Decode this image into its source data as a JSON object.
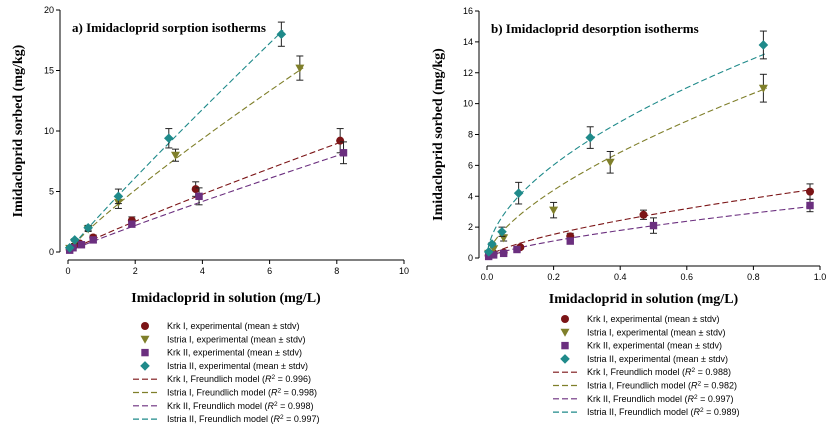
{
  "chart_data": [
    {
      "type": "scatter",
      "title": "a) Imidacloprid sorption isotherms",
      "xlabel": "Imidacloprid in solution (mg/L)",
      "ylabel": "Imidacloprid sorbed (mg/kg)",
      "xlim": [
        0,
        10
      ],
      "ylim": [
        0,
        20
      ],
      "xticks": [
        "0",
        "2",
        "4",
        "6",
        "8",
        "10"
      ],
      "yticks": [
        "0",
        "5",
        "10",
        "15",
        "20"
      ],
      "grid": false,
      "series": [
        {
          "key": "krk1",
          "color": "#7b1416",
          "marker": "circle",
          "points": [
            {
              "x": 0.05,
              "y": 0.2,
              "e": 0
            },
            {
              "x": 0.15,
              "y": 0.4,
              "e": 0
            },
            {
              "x": 0.35,
              "y": 0.7,
              "e": 0
            },
            {
              "x": 0.75,
              "y": 1.2,
              "e": 0.2
            },
            {
              "x": 1.9,
              "y": 2.6,
              "e": 0.3
            },
            {
              "x": 3.8,
              "y": 5.2,
              "e": 0.6
            },
            {
              "x": 8.1,
              "y": 9.2,
              "e": 1.0
            }
          ],
          "model": {
            "k": 1.35,
            "n": 0.91,
            "xmax": 8.2
          }
        },
        {
          "key": "istria1",
          "color": "#7f7f2a",
          "marker": "triangle",
          "points": [
            {
              "x": 0.05,
              "y": 0.3,
              "e": 0
            },
            {
              "x": 0.2,
              "y": 0.8,
              "e": 0.1
            },
            {
              "x": 0.6,
              "y": 1.9,
              "e": 0.2
            },
            {
              "x": 1.5,
              "y": 4.1,
              "e": 0.5
            },
            {
              "x": 3.2,
              "y": 8.0,
              "e": 0.5
            },
            {
              "x": 6.9,
              "y": 15.2,
              "e": 1.0
            }
          ],
          "model": {
            "k": 2.8,
            "n": 0.87,
            "xmax": 7.0
          }
        },
        {
          "key": "krk2",
          "color": "#6b2f7f",
          "marker": "square",
          "points": [
            {
              "x": 0.05,
              "y": 0.15,
              "e": 0
            },
            {
              "x": 0.15,
              "y": 0.35,
              "e": 0
            },
            {
              "x": 0.4,
              "y": 0.6,
              "e": 0
            },
            {
              "x": 0.75,
              "y": 1.0,
              "e": 0.2
            },
            {
              "x": 1.9,
              "y": 2.3,
              "e": 0.2
            },
            {
              "x": 3.9,
              "y": 4.6,
              "e": 0.7
            },
            {
              "x": 8.2,
              "y": 8.2,
              "e": 0.9
            }
          ],
          "model": {
            "k": 1.15,
            "n": 0.93,
            "xmax": 8.3
          }
        },
        {
          "key": "istria2",
          "color": "#1f8a8a",
          "marker": "diamond",
          "points": [
            {
              "x": 0.05,
              "y": 0.35,
              "e": 0
            },
            {
              "x": 0.2,
              "y": 1.0,
              "e": 0.1
            },
            {
              "x": 0.6,
              "y": 2.0,
              "e": 0.2
            },
            {
              "x": 1.5,
              "y": 4.6,
              "e": 0.6
            },
            {
              "x": 3.0,
              "y": 9.4,
              "e": 0.8
            },
            {
              "x": 6.35,
              "y": 18.0,
              "e": 1.0
            }
          ],
          "model": {
            "k": 3.2,
            "n": 0.94,
            "xmax": 6.4
          }
        }
      ],
      "legend": [
        {
          "key": "krk1",
          "kind": "point",
          "label": "Krk I, experimental (mean ± stdv)"
        },
        {
          "key": "istria1",
          "kind": "point",
          "label": "Istria I, experimental (mean ± stdv)"
        },
        {
          "key": "krk2",
          "kind": "point",
          "label": "Krk II, experimental (mean ± stdv)"
        },
        {
          "key": "istria2",
          "kind": "point",
          "label": "Istria II, experimental (mean ± stdv)"
        },
        {
          "key": "krk1",
          "kind": "line",
          "label": "Krk I, Freundlich model",
          "r2": "0.996"
        },
        {
          "key": "istria1",
          "kind": "line",
          "label": "Istria I, Freundlich model",
          "r2": "0.998"
        },
        {
          "key": "krk2",
          "kind": "line",
          "label": "Krk II, Freundlich model",
          "r2": "0.998"
        },
        {
          "key": "istria2",
          "kind": "line",
          "label": "Istria II, Freundlich model",
          "r2": "0.997"
        }
      ]
    },
    {
      "type": "scatter",
      "title": "b) Imidacloprid desorption isotherms",
      "xlabel": "Imidacloprid in solution (mg/L)",
      "ylabel": "Imidacloprid sorbed (mg/kg)",
      "xlim": [
        0,
        1
      ],
      "ylim": [
        0,
        16
      ],
      "xticks": [
        "0.0",
        "0.2",
        "0.4",
        "0.6",
        "0.8",
        "1.0"
      ],
      "yticks": [
        "0",
        "2",
        "4",
        "6",
        "8",
        "10",
        "12",
        "14",
        "16"
      ],
      "grid": false,
      "series": [
        {
          "key": "krk1",
          "color": "#7b1416",
          "marker": "circle",
          "points": [
            {
              "x": 0.005,
              "y": 0.15,
              "e": 0
            },
            {
              "x": 0.02,
              "y": 0.3,
              "e": 0
            },
            {
              "x": 0.05,
              "y": 0.35,
              "e": 0
            },
            {
              "x": 0.1,
              "y": 0.7,
              "e": 0.1
            },
            {
              "x": 0.25,
              "y": 1.4,
              "e": 0.2
            },
            {
              "x": 0.47,
              "y": 2.8,
              "e": 0.3
            },
            {
              "x": 0.97,
              "y": 4.3,
              "e": 0.5
            }
          ],
          "model": {
            "k": 4.5,
            "n": 0.67,
            "xmax": 0.98
          }
        },
        {
          "key": "istria1",
          "color": "#7f7f2a",
          "marker": "triangle",
          "points": [
            {
              "x": 0.005,
              "y": 0.3,
              "e": 0
            },
            {
              "x": 0.02,
              "y": 0.6,
              "e": 0
            },
            {
              "x": 0.05,
              "y": 1.3,
              "e": 0.2
            },
            {
              "x": 0.2,
              "y": 3.1,
              "e": 0.5
            },
            {
              "x": 0.37,
              "y": 6.2,
              "e": 0.7
            },
            {
              "x": 0.83,
              "y": 11.0,
              "e": 0.9
            }
          ],
          "model": {
            "k": 12.3,
            "n": 0.64,
            "xmax": 0.84
          }
        },
        {
          "key": "krk2",
          "color": "#6b2f7f",
          "marker": "square",
          "points": [
            {
              "x": 0.005,
              "y": 0.1,
              "e": 0
            },
            {
              "x": 0.02,
              "y": 0.2,
              "e": 0
            },
            {
              "x": 0.05,
              "y": 0.3,
              "e": 0
            },
            {
              "x": 0.09,
              "y": 0.55,
              "e": 0.1
            },
            {
              "x": 0.25,
              "y": 1.1,
              "e": 0.2
            },
            {
              "x": 0.5,
              "y": 2.1,
              "e": 0.5
            },
            {
              "x": 0.97,
              "y": 3.4,
              "e": 0.4
            }
          ],
          "model": {
            "k": 3.4,
            "n": 0.7,
            "xmax": 0.98
          }
        },
        {
          "key": "istria2",
          "color": "#1f8a8a",
          "marker": "diamond",
          "points": [
            {
              "x": 0.005,
              "y": 0.4,
              "e": 0
            },
            {
              "x": 0.015,
              "y": 0.9,
              "e": 0.1
            },
            {
              "x": 0.045,
              "y": 1.7,
              "e": 0.3
            },
            {
              "x": 0.095,
              "y": 4.2,
              "e": 0.7
            },
            {
              "x": 0.31,
              "y": 7.8,
              "e": 0.7
            },
            {
              "x": 0.83,
              "y": 13.8,
              "e": 0.9
            }
          ],
          "model": {
            "k": 14.6,
            "n": 0.55,
            "xmax": 0.84
          }
        }
      ],
      "legend": [
        {
          "key": "krk1",
          "kind": "point",
          "label": "Krk I, experimental (mean ± stdv)"
        },
        {
          "key": "istria1",
          "kind": "point",
          "label": "Istria I, experimental (mean ± stdv)"
        },
        {
          "key": "krk2",
          "kind": "point",
          "label": "Krk II, experimental (mean ± stdv)"
        },
        {
          "key": "istria2",
          "kind": "point",
          "label": "Istria II, experimental (mean ± stdv)"
        },
        {
          "key": "krk1",
          "kind": "line",
          "label": "Krk I, Freundlich model",
          "r2": "0.988"
        },
        {
          "key": "istria1",
          "kind": "line",
          "label": "Istria I, Freundlich model",
          "r2": "0.982"
        },
        {
          "key": "krk2",
          "kind": "line",
          "label": "Krk II, Freundlich model",
          "r2": "0.997"
        },
        {
          "key": "istria2",
          "kind": "line",
          "label": "Istria II, Freundlich model",
          "r2": "0.989"
        }
      ]
    }
  ]
}
